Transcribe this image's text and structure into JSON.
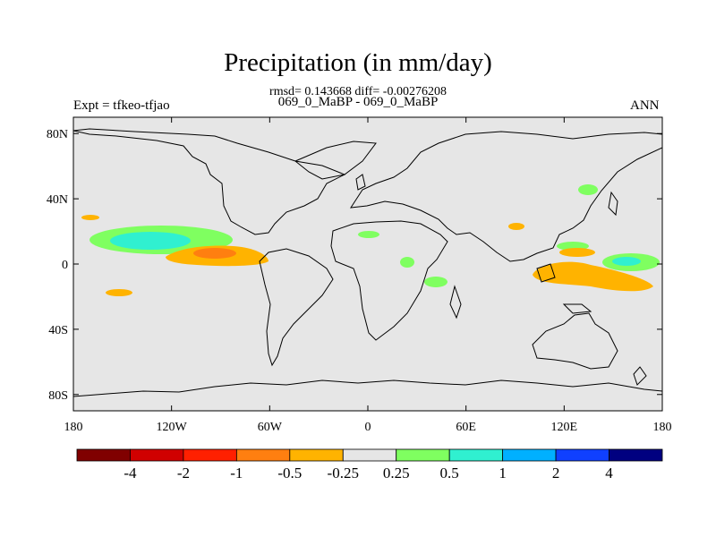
{
  "title": "Precipitation (in mm/day)",
  "stats_line": "rmsd= 0.143668 diff= -0.00276208",
  "cases_line": "069_0_MaBP - 069_0_MaBP",
  "expt_label": "Expt = tfkeo-tfjao",
  "season_label": "ANN",
  "map": {
    "projection": "cylindrical equidistant",
    "lon_range": [
      -180,
      180
    ],
    "lat_range": [
      -90,
      90
    ],
    "background_color": "#e6e6e6",
    "x_ticks": [
      {
        "value": -180,
        "label": "180"
      },
      {
        "value": -120,
        "label": "120W"
      },
      {
        "value": -60,
        "label": "60W"
      },
      {
        "value": 0,
        "label": "0"
      },
      {
        "value": 60,
        "label": "60E"
      },
      {
        "value": 120,
        "label": "120E"
      },
      {
        "value": 180,
        "label": "180"
      }
    ],
    "y_ticks": [
      {
        "value": 80,
        "label": "80N"
      },
      {
        "value": 40,
        "label": "40N"
      },
      {
        "value": 0,
        "label": "0"
      },
      {
        "value": -40,
        "label": "40S"
      },
      {
        "value": -80,
        "label": "80S"
      }
    ]
  },
  "chart_data": {
    "type": "heatmap",
    "title": "Precipitation (in mm/day)",
    "colorbar": {
      "levels": [
        "-4",
        "-2",
        "-1",
        "-0.5",
        "-0.25",
        "0.25",
        "0.5",
        "1",
        "2",
        "4"
      ],
      "colors": [
        "#800000",
        "#d00000",
        "#ff2000",
        "#ff7f10",
        "#ffb300",
        "#e6e6e6",
        "#7fff60",
        "#30f0d0",
        "#00b0ff",
        "#1040ff",
        "#000080"
      ]
    },
    "anomaly_regions": [
      {
        "name": "tropical east Pacific north",
        "center_lon": -140,
        "center_lat": 14,
        "category": "0.5 to 1"
      },
      {
        "name": "tropical east Pacific equatorial",
        "center_lon": -95,
        "center_lat": 6,
        "category": "-1 to -0.5"
      },
      {
        "name": "western Pacific",
        "center_lon": 160,
        "center_lat": 1,
        "category": "0.5 to 1"
      },
      {
        "name": "maritime continent",
        "center_lon": 125,
        "center_lat": -6,
        "category": "-0.5 to -0.25"
      },
      {
        "name": "south Pacific",
        "center_lon": -150,
        "center_lat": -17,
        "category": "-0.5 to -0.25"
      },
      {
        "name": "central Africa",
        "center_lon": 25,
        "center_lat": -2,
        "category": "0.25 to 0.5"
      },
      {
        "name": "east Asia",
        "center_lon": 135,
        "center_lat": 13,
        "category": "0.25 to 0.5"
      }
    ]
  }
}
